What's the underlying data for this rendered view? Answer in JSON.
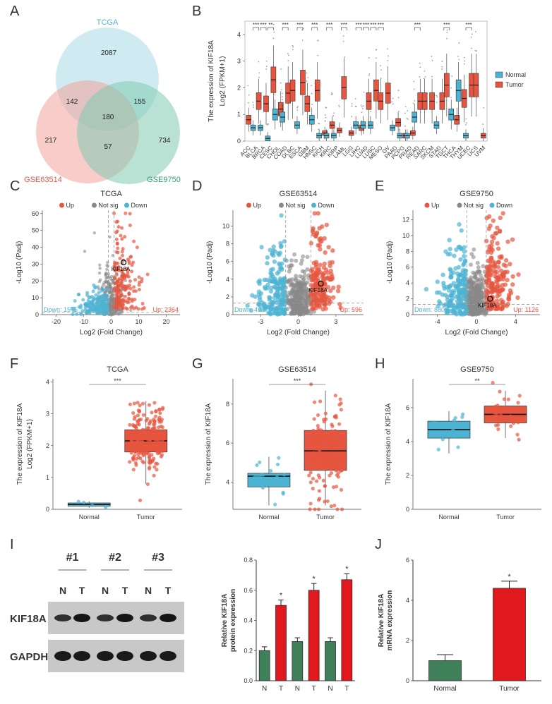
{
  "panels": {
    "A": "A",
    "B": "B",
    "C": "C",
    "D": "D",
    "E": "E",
    "F": "F",
    "G": "G",
    "H": "H",
    "I": "I",
    "J": "J"
  },
  "venn": {
    "sets": [
      {
        "name": "TCGA",
        "color": "#a9d8e6",
        "label_color": "#4fb3d4"
      },
      {
        "name": "GSE63514",
        "color": "#f2a39a",
        "label_color": "#e5554a"
      },
      {
        "name": "GSE9750",
        "color": "#7fcbb0",
        "label_color": "#2e9e78"
      }
    ],
    "counts": {
      "tcga_only": "2087",
      "gse63514_only": "217",
      "gse9750_only": "734",
      "tcga_gse63514": "142",
      "tcga_gse9750": "155",
      "gse63514_gse9750": "57",
      "all": "180"
    }
  },
  "colors": {
    "normal": "#4db3d3",
    "tumor": "#e5553f",
    "notsig": "#888888",
    "wb_bar_normal": "#3f7f5a",
    "wb_bar_tumor": "#e0191f"
  },
  "chart_data": [
    {
      "id": "B",
      "type": "box",
      "ylabel_line1": "The expression of KIF18A",
      "ylabel_line2": "Log2 (FPKM+1)",
      "ylim": [
        0,
        4.5
      ],
      "yticks": [
        "0",
        "1",
        "2",
        "3",
        "4"
      ],
      "legend": [
        "Normal",
        "Tumor"
      ],
      "categories": [
        "ACC",
        "BLCA",
        "BRCA",
        "CESC",
        "CHOL",
        "COAD",
        "DLBC",
        "ESCA",
        "GBM",
        "HNSC",
        "KICH",
        "KIRC",
        "KIRP",
        "LAML",
        "LGG",
        "LIHC",
        "LUAD",
        "LUSC",
        "MESO",
        "OV",
        "PAAD",
        "PCPG",
        "PRAD",
        "READ",
        "SARC",
        "SKCM",
        "STAD",
        "TGCT",
        "THCA",
        "THYM",
        "UCEC",
        "UCS",
        "UVM"
      ],
      "normal_medians": [
        null,
        0.5,
        0.5,
        0.1,
        1.0,
        0.9,
        null,
        0.6,
        null,
        0.8,
        0.2,
        0.2,
        0.2,
        null,
        null,
        0.6,
        0.6,
        0.6,
        null,
        null,
        0.5,
        0.2,
        0.2,
        0.9,
        null,
        null,
        0.6,
        null,
        1.0,
        1.9,
        0.2,
        null,
        null
      ],
      "tumor_medians": [
        0.8,
        1.5,
        1.4,
        2.3,
        1.2,
        1.8,
        1.9,
        2.2,
        1.4,
        1.9,
        0.3,
        0.6,
        0.4,
        2.0,
        0.3,
        0.5,
        1.5,
        1.9,
        1.5,
        1.8,
        0.7,
        0.2,
        0.3,
        1.5,
        1.5,
        1.5,
        1.5,
        2.1,
        0.8,
        1.6,
        2.1,
        2.1,
        0.2
      ],
      "sig_labels": [
        "***",
        "***",
        "**",
        "***",
        "***",
        "***",
        "***",
        "***",
        "***",
        "***",
        "***",
        "***",
        "***",
        "***",
        "***"
      ]
    },
    {
      "id": "C",
      "type": "scatter",
      "title": "TCGA",
      "xlabel": "Log2 (Fold Change)",
      "ylabel": "-Log10 (Padj)",
      "legend": [
        "Up",
        "Not sig",
        "Down"
      ],
      "xlim": [
        -25,
        25
      ],
      "ylim": [
        0,
        62
      ],
      "xticks": [
        "-20",
        "-10",
        "0",
        "10",
        "20"
      ],
      "yticks": [
        "0",
        "10",
        "20",
        "30",
        "40",
        "50",
        "60"
      ],
      "down_label": "Down: 1575",
      "up_label": "Up: 2364",
      "gene": "KIF18A",
      "gene_point": [
        4.5,
        31
      ]
    },
    {
      "id": "D",
      "type": "scatter",
      "title": "GSE63514",
      "xlabel": "Log2 (Fold Change)",
      "ylabel": "-Log10 (Padj)",
      "legend": [
        "Up",
        "Not sig",
        "Down"
      ],
      "xlim": [
        -5.2,
        5.2
      ],
      "ylim": [
        0,
        11.8
      ],
      "xticks": [
        "-3",
        "0",
        "3"
      ],
      "yticks": [
        "0",
        "2",
        "4",
        "6",
        "8",
        "10"
      ],
      "down_label": "Down: 493",
      "up_label": "Up: 596",
      "gene": "KIF18A",
      "gene_point": [
        1.8,
        3.5
      ]
    },
    {
      "id": "E",
      "type": "scatter",
      "title": "GSE9750",
      "xlabel": "Log2 (Fold Change)",
      "ylabel": "-Log10 (Padj)",
      "legend": [
        "Up",
        "Not sig",
        "Down"
      ],
      "xlim": [
        -6.5,
        6.5
      ],
      "ylim": [
        0,
        13.2
      ],
      "xticks": [
        "-4",
        "0",
        "4"
      ],
      "yticks": [
        "0",
        "2",
        "4",
        "6",
        "8",
        "10",
        "12"
      ],
      "down_label": "Down: 880",
      "up_label": "Up: 1126",
      "gene": "KIF18A",
      "gene_point": [
        1.4,
        2.0
      ]
    },
    {
      "id": "F",
      "type": "box",
      "title": "TCGA",
      "ylabel_line1": "The expression of KIF18A",
      "ylabel_line2": "Log2 (FPKM+1)",
      "categories": [
        "Normal",
        "Tumor"
      ],
      "sig": "***",
      "ylim": [
        0,
        4.1
      ],
      "yticks": [
        "0",
        "1",
        "2",
        "3",
        "4"
      ],
      "boxes": [
        {
          "q1": 0.1,
          "median": 0.15,
          "q3": 0.2,
          "lo": 0.05,
          "hi": 0.25
        },
        {
          "q1": 1.8,
          "median": 2.15,
          "q3": 2.5,
          "lo": 0.8,
          "hi": 3.4
        }
      ]
    },
    {
      "id": "G",
      "type": "box",
      "title": "GSE63514",
      "ylabel_line1": "The expression of KIF18A",
      "categories": [
        "Normal",
        "Tumor"
      ],
      "sig": "***",
      "ylim": [
        2.6,
        9.3
      ],
      "yticks": [
        "4",
        "6",
        "8"
      ],
      "boxes": [
        {
          "q1": 3.75,
          "median": 4.3,
          "q3": 4.45,
          "lo": 2.8,
          "hi": 5.3
        },
        {
          "q1": 4.6,
          "median": 5.6,
          "q3": 6.65,
          "lo": 2.8,
          "hi": 8.7
        }
      ]
    },
    {
      "id": "H",
      "type": "box",
      "title": "GSE9750",
      "ylabel_line1": "The expression of KIF18A",
      "categories": [
        "Normal",
        "Tumor"
      ],
      "sig": "**",
      "ylim": [
        0,
        7.7
      ],
      "yticks": [
        "0",
        "2",
        "4",
        "6"
      ],
      "boxes": [
        {
          "q1": 4.2,
          "median": 4.7,
          "q3": 5.2,
          "lo": 3.3,
          "hi": 5.8
        },
        {
          "q1": 5.1,
          "median": 5.6,
          "q3": 6.1,
          "lo": 4.2,
          "hi": 7.0
        }
      ]
    },
    {
      "id": "I",
      "type": "bar",
      "ylabel_line1": "Relative KIF18A",
      "ylabel_line2": "protein expression",
      "categories": [
        "N",
        "T",
        "N",
        "T",
        "N",
        "T"
      ],
      "values": [
        0.2,
        0.5,
        0.26,
        0.6,
        0.26,
        0.67
      ],
      "errors": [
        0.025,
        0.035,
        0.025,
        0.045,
        0.025,
        0.04
      ],
      "sig": [
        "",
        "*",
        "",
        "*",
        "",
        "*"
      ],
      "ylim": [
        0,
        0.8
      ],
      "yticks": [
        "0.0",
        "0.2",
        "0.4",
        "0.6",
        "0.8"
      ]
    },
    {
      "id": "J",
      "type": "bar",
      "ylabel_line1": "Relative KIF18A",
      "ylabel_line2": "mRNA expression",
      "categories": [
        "Normal",
        "Tumor"
      ],
      "values": [
        1.0,
        4.6
      ],
      "errors": [
        0.3,
        0.35
      ],
      "sig": [
        "",
        "*"
      ],
      "ylim": [
        0,
        6
      ],
      "yticks": [
        "0",
        "2",
        "4",
        "6"
      ]
    }
  ],
  "western": {
    "samples": [
      "#1",
      "#2",
      "#3"
    ],
    "lanes": [
      "N",
      "T",
      "N",
      "T",
      "N",
      "T"
    ],
    "proteins": [
      "KIF18A",
      "GAPDH"
    ]
  }
}
